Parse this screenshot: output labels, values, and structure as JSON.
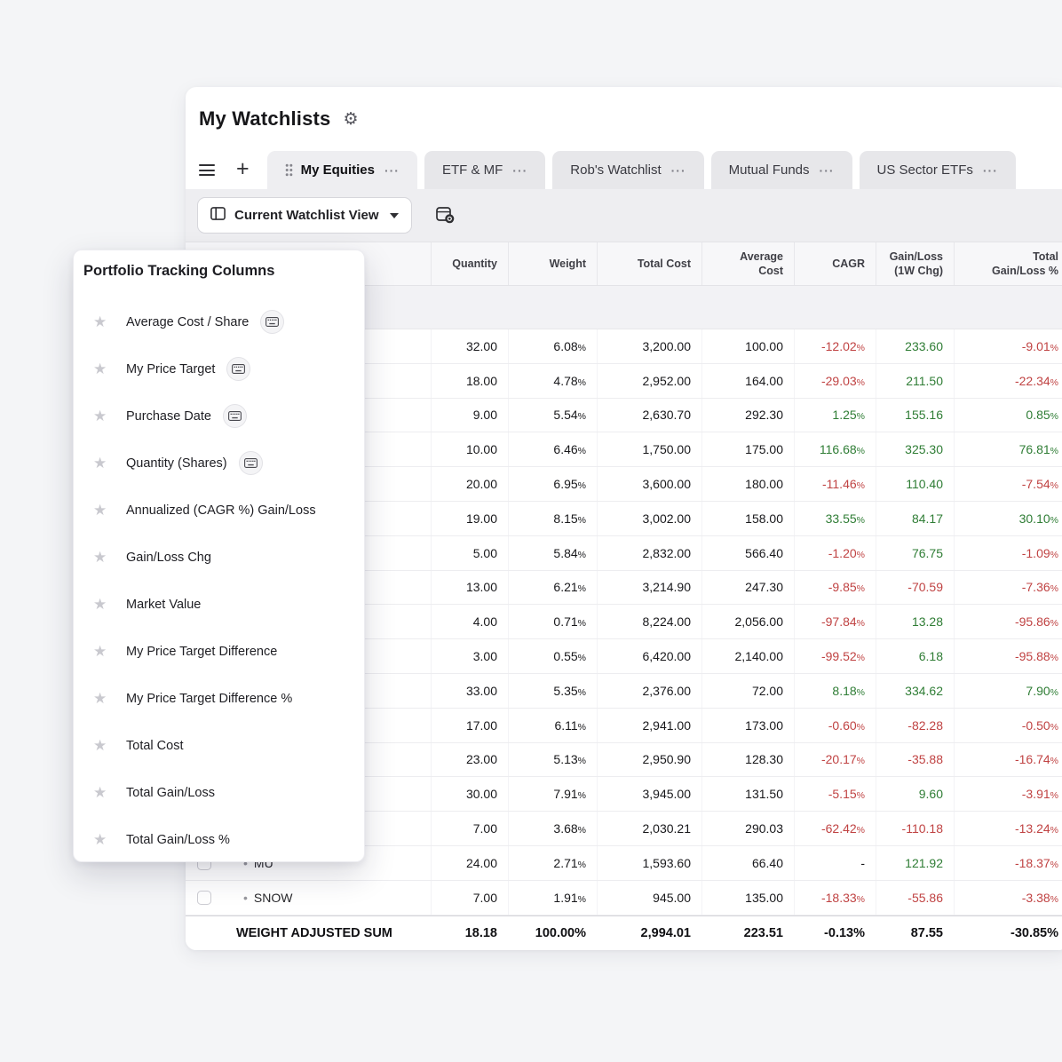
{
  "icons": {
    "gear": "⚙",
    "plus": "+",
    "ellipsis": "···",
    "star": "★",
    "bullet": "•"
  },
  "header": {
    "title": "My Watchlists"
  },
  "tab_bar": {
    "tabs": [
      {
        "label": "My Equities",
        "active": true
      },
      {
        "label": "ETF & MF",
        "active": false
      },
      {
        "label": "Rob's Watchlist",
        "active": false
      },
      {
        "label": "Mutual Funds",
        "active": false
      },
      {
        "label": "US Sector ETFs",
        "active": false
      }
    ]
  },
  "toolbar": {
    "view_button_label": "Current Watchlist View"
  },
  "table": {
    "headers": [
      "Quantity",
      "Weight",
      "Total Cost",
      "Average\nCost",
      "CAGR",
      "Gain/Loss\n(1W Chg)",
      "Total\nGain/Loss %"
    ],
    "column_keys": [
      "quantity",
      "weight",
      "total-cost",
      "average-cost",
      "cagr",
      "gain-loss-1w-chg",
      "total-gain-loss-pct"
    ],
    "rows": [
      {
        "symbol": "",
        "cells": [
          "32.00",
          "6.08%",
          "3,200.00",
          "100.00",
          "-12.02%",
          "233.60",
          "-9.01%"
        ]
      },
      {
        "symbol": "",
        "cells": [
          "18.00",
          "4.78%",
          "2,952.00",
          "164.00",
          "-29.03%",
          "211.50",
          "-22.34%"
        ]
      },
      {
        "symbol": "",
        "cells": [
          "9.00",
          "5.54%",
          "2,630.70",
          "292.30",
          "1.25%",
          "155.16",
          "0.85%"
        ]
      },
      {
        "symbol": "",
        "cells": [
          "10.00",
          "6.46%",
          "1,750.00",
          "175.00",
          "116.68%",
          "325.30",
          "76.81%"
        ]
      },
      {
        "symbol": "",
        "cells": [
          "20.00",
          "6.95%",
          "3,600.00",
          "180.00",
          "-11.46%",
          "110.40",
          "-7.54%"
        ]
      },
      {
        "symbol": "",
        "cells": [
          "19.00",
          "8.15%",
          "3,002.00",
          "158.00",
          "33.55%",
          "84.17",
          "30.10%"
        ]
      },
      {
        "symbol": "",
        "cells": [
          "5.00",
          "5.84%",
          "2,832.00",
          "566.40",
          "-1.20%",
          "76.75",
          "-1.09%"
        ]
      },
      {
        "symbol": "",
        "cells": [
          "13.00",
          "6.21%",
          "3,214.90",
          "247.30",
          "-9.85%",
          "-70.59",
          "-7.36%"
        ]
      },
      {
        "symbol": "",
        "cells": [
          "4.00",
          "0.71%",
          "8,224.00",
          "2,056.00",
          "-97.84%",
          "13.28",
          "-95.86%"
        ]
      },
      {
        "symbol": "",
        "cells": [
          "3.00",
          "0.55%",
          "6,420.00",
          "2,140.00",
          "-99.52%",
          "6.18",
          "-95.88%"
        ]
      },
      {
        "symbol": "",
        "cells": [
          "33.00",
          "5.35%",
          "2,376.00",
          "72.00",
          "8.18%",
          "334.62",
          "7.90%"
        ]
      },
      {
        "symbol": "",
        "cells": [
          "17.00",
          "6.11%",
          "2,941.00",
          "173.00",
          "-0.60%",
          "-82.28",
          "-0.50%"
        ]
      },
      {
        "symbol": "",
        "cells": [
          "23.00",
          "5.13%",
          "2,950.90",
          "128.30",
          "-20.17%",
          "-35.88",
          "-16.74%"
        ]
      },
      {
        "symbol": "",
        "cells": [
          "30.00",
          "7.91%",
          "3,945.00",
          "131.50",
          "-5.15%",
          "9.60",
          "-3.91%"
        ]
      },
      {
        "symbol": "",
        "cells": [
          "7.00",
          "3.68%",
          "2,030.21",
          "290.03",
          "-62.42%",
          "-110.18",
          "-13.24%"
        ]
      },
      {
        "symbol": "MU",
        "cells": [
          "24.00",
          "2.71%",
          "1,593.60",
          "66.40",
          "-",
          "121.92",
          "-18.37%"
        ]
      },
      {
        "symbol": "SNOW",
        "cells": [
          "7.00",
          "1.91%",
          "945.00",
          "135.00",
          "-18.33%",
          "-55.86",
          "-3.38%"
        ]
      }
    ],
    "footer": {
      "label": "WEIGHT ADJUSTED SUM",
      "cells": [
        "18.18",
        "100.00%",
        "2,994.01",
        "223.51",
        "-0.13%",
        "87.55",
        "-30.85%"
      ]
    }
  },
  "popup": {
    "title": "Portfolio Tracking Columns",
    "items": [
      {
        "label": "Average Cost / Share",
        "keyboard": true
      },
      {
        "label": "My Price Target",
        "keyboard": true
      },
      {
        "label": "Purchase Date",
        "keyboard": true
      },
      {
        "label": "Quantity (Shares)",
        "keyboard": true
      },
      {
        "label": "Annualized (CAGR %) Gain/Loss",
        "keyboard": false
      },
      {
        "label": "Gain/Loss Chg",
        "keyboard": false
      },
      {
        "label": "Market Value",
        "keyboard": false
      },
      {
        "label": "My Price Target Difference",
        "keyboard": false
      },
      {
        "label": "My Price Target Difference %",
        "keyboard": false
      },
      {
        "label": "Total Cost",
        "keyboard": false
      },
      {
        "label": "Total Gain/Loss",
        "keyboard": false
      },
      {
        "label": "Total Gain/Loss %",
        "keyboard": false
      }
    ]
  },
  "colors": {
    "negative": "#c04343",
    "positive": "#2f7d35"
  }
}
